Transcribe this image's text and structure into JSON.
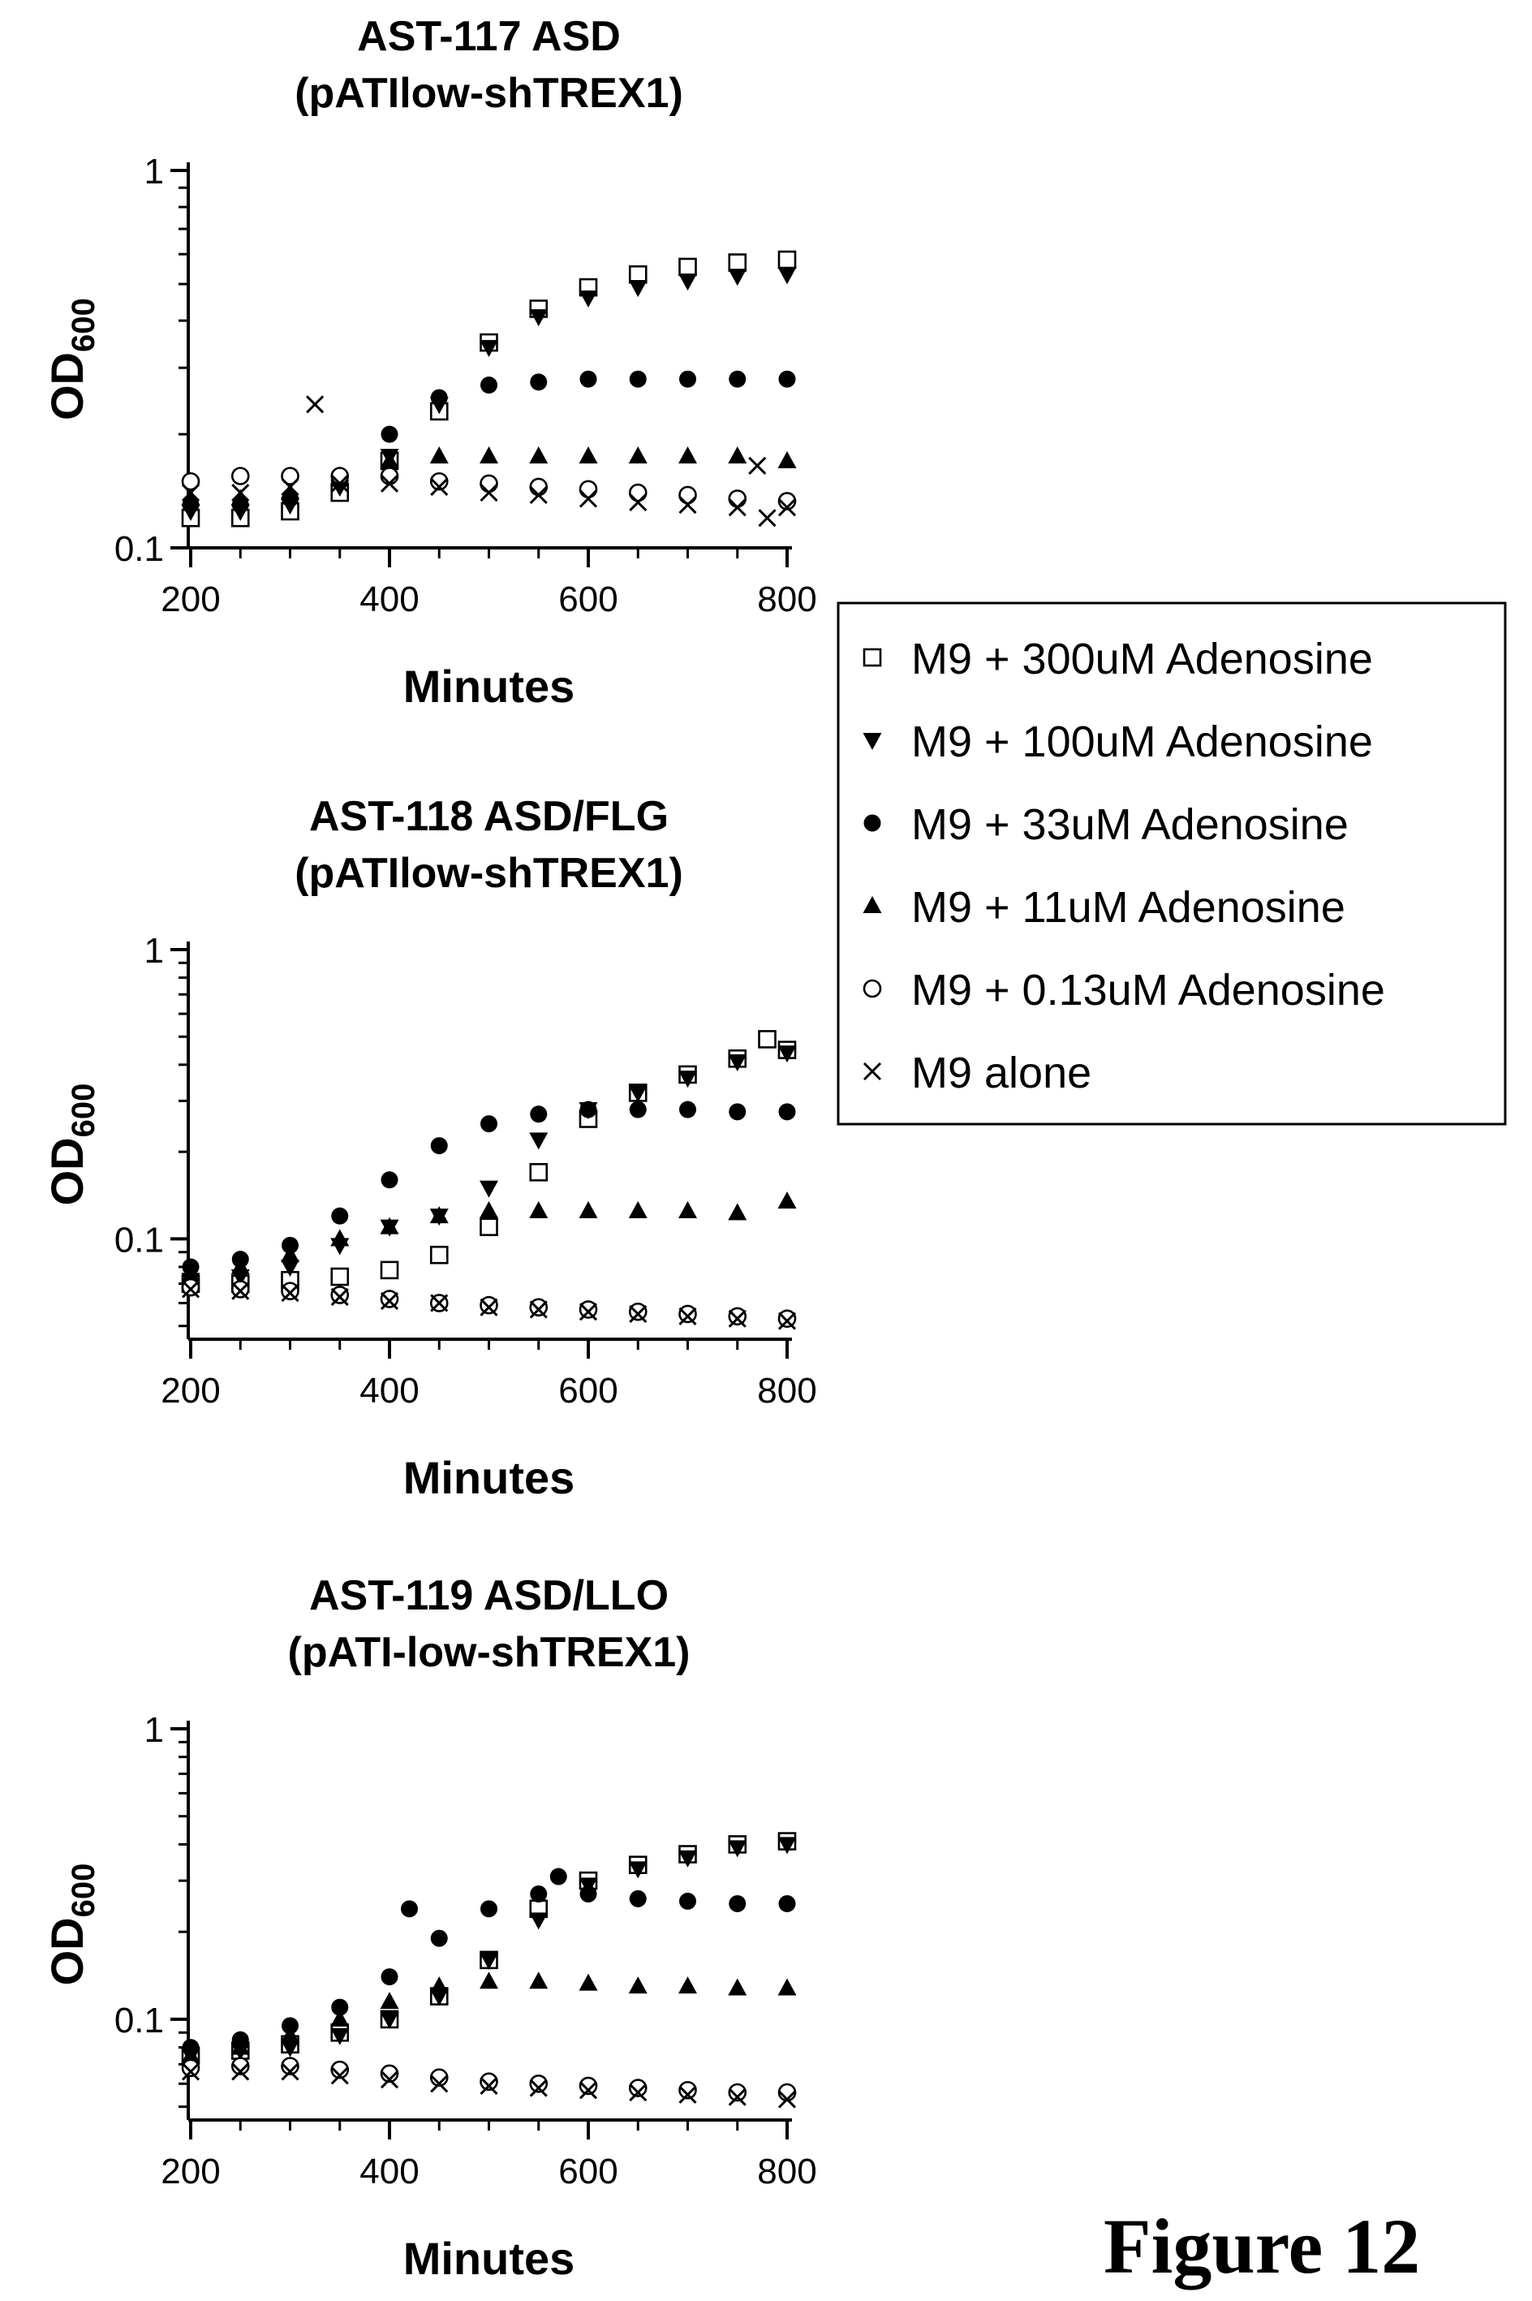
{
  "figure_label": "Figure 12",
  "legend": [
    {
      "label": "M9 + 300uM Adenosine",
      "marker": "square-open"
    },
    {
      "label": "M9 + 100uM Adenosine",
      "marker": "triangle-down-filled"
    },
    {
      "label": "M9 + 33uM Adenosine",
      "marker": "circle-filled"
    },
    {
      "label": "M9 + 11uM Adenosine",
      "marker": "triangle-up-filled"
    },
    {
      "label": "M9 + 0.13uM Adenosine",
      "marker": "circle-open"
    },
    {
      "label": "M9 alone",
      "marker": "x"
    }
  ],
  "chart_data": [
    {
      "type": "scatter",
      "title": [
        "AST-117 ASD",
        "(pATIlow-shTREX1)"
      ],
      "xlabel": "Minutes",
      "ylabel": "OD",
      "ylabel_sub": "600",
      "xlim": [
        200,
        800
      ],
      "ylim": [
        0.1,
        1
      ],
      "yscale": "log",
      "x_ticks": [
        "200",
        "400",
        "600",
        "800"
      ],
      "y_ticks": [
        "1",
        "0.1"
      ],
      "series": [
        {
          "points": [
            [
              200,
              0.12
            ],
            [
              250,
              0.12
            ],
            [
              300,
              0.125
            ],
            [
              350,
              0.14
            ],
            [
              400,
              0.17
            ],
            [
              450,
              0.23
            ],
            [
              500,
              0.35
            ],
            [
              550,
              0.43
            ],
            [
              600,
              0.49
            ],
            [
              650,
              0.53
            ],
            [
              700,
              0.555
            ],
            [
              750,
              0.57
            ],
            [
              800,
              0.58
            ]
          ]
        },
        {
          "points": [
            [
              200,
              0.125
            ],
            [
              250,
              0.125
            ],
            [
              300,
              0.13
            ],
            [
              350,
              0.145
            ],
            [
              400,
              0.175
            ],
            [
              450,
              0.24
            ],
            [
              500,
              0.34
            ],
            [
              550,
              0.41
            ],
            [
              600,
              0.46
            ],
            [
              650,
              0.49
            ],
            [
              700,
              0.51
            ],
            [
              750,
              0.525
            ],
            [
              800,
              0.53
            ]
          ]
        },
        {
          "points": [
            [
              200,
              0.13
            ],
            [
              250,
              0.13
            ],
            [
              300,
              0.135
            ],
            [
              350,
              0.15
            ],
            [
              400,
              0.2
            ],
            [
              450,
              0.25
            ],
            [
              500,
              0.27
            ],
            [
              550,
              0.275
            ],
            [
              600,
              0.28
            ],
            [
              650,
              0.28
            ],
            [
              700,
              0.28
            ],
            [
              750,
              0.28
            ],
            [
              800,
              0.28
            ]
          ]
        },
        {
          "points": [
            [
              200,
              0.135
            ],
            [
              250,
              0.135
            ],
            [
              300,
              0.14
            ],
            [
              350,
              0.155
            ],
            [
              400,
              0.17
            ],
            [
              450,
              0.175
            ],
            [
              500,
              0.175
            ],
            [
              550,
              0.175
            ],
            [
              600,
              0.175
            ],
            [
              650,
              0.175
            ],
            [
              700,
              0.175
            ],
            [
              750,
              0.175
            ],
            [
              800,
              0.17
            ]
          ]
        },
        {
          "points": [
            [
              200,
              0.15
            ],
            [
              250,
              0.155
            ],
            [
              300,
              0.155
            ],
            [
              350,
              0.155
            ],
            [
              400,
              0.155
            ],
            [
              450,
              0.15
            ],
            [
              500,
              0.148
            ],
            [
              550,
              0.145
            ],
            [
              600,
              0.143
            ],
            [
              650,
              0.14
            ],
            [
              700,
              0.138
            ],
            [
              750,
              0.135
            ],
            [
              800,
              0.133
            ]
          ]
        },
        {
          "points": [
            [
              200,
              0.14
            ],
            [
              250,
              0.14
            ],
            [
              300,
              0.145
            ],
            [
              325,
              0.24
            ],
            [
              350,
              0.148
            ],
            [
              400,
              0.148
            ],
            [
              450,
              0.145
            ],
            [
              500,
              0.14
            ],
            [
              550,
              0.138
            ],
            [
              600,
              0.135
            ],
            [
              650,
              0.132
            ],
            [
              700,
              0.13
            ],
            [
              750,
              0.128
            ],
            [
              770,
              0.165
            ],
            [
              780,
              0.12
            ],
            [
              800,
              0.128
            ]
          ]
        }
      ]
    },
    {
      "type": "scatter",
      "title": [
        "AST-118 ASD/FLG",
        "(pATIlow-shTREX1)"
      ],
      "xlabel": "Minutes",
      "ylabel": "OD",
      "ylabel_sub": "600",
      "xlim": [
        200,
        800
      ],
      "ylim": [
        0.045,
        1
      ],
      "yscale": "log",
      "x_ticks": [
        "200",
        "400",
        "600",
        "800"
      ],
      "y_ticks": [
        "1",
        "0.1"
      ],
      "series": [
        {
          "points": [
            [
              200,
              0.07
            ],
            [
              250,
              0.07
            ],
            [
              300,
              0.072
            ],
            [
              350,
              0.074
            ],
            [
              400,
              0.078
            ],
            [
              450,
              0.088
            ],
            [
              500,
              0.11
            ],
            [
              550,
              0.17
            ],
            [
              600,
              0.26
            ],
            [
              650,
              0.32
            ],
            [
              700,
              0.37
            ],
            [
              750,
              0.42
            ],
            [
              780,
              0.49
            ],
            [
              800,
              0.45
            ]
          ]
        },
        {
          "points": [
            [
              200,
              0.072
            ],
            [
              250,
              0.074
            ],
            [
              300,
              0.08
            ],
            [
              350,
              0.095
            ],
            [
              400,
              0.11
            ],
            [
              450,
              0.12
            ],
            [
              500,
              0.15
            ],
            [
              550,
              0.22
            ],
            [
              600,
              0.28
            ],
            [
              650,
              0.32
            ],
            [
              700,
              0.36
            ],
            [
              750,
              0.41
            ],
            [
              800,
              0.44
            ]
          ]
        },
        {
          "points": [
            [
              200,
              0.08
            ],
            [
              250,
              0.085
            ],
            [
              300,
              0.095
            ],
            [
              350,
              0.12
            ],
            [
              400,
              0.16
            ],
            [
              450,
              0.21
            ],
            [
              500,
              0.25
            ],
            [
              550,
              0.27
            ],
            [
              600,
              0.28
            ],
            [
              650,
              0.28
            ],
            [
              700,
              0.28
            ],
            [
              750,
              0.275
            ],
            [
              800,
              0.275
            ]
          ]
        },
        {
          "points": [
            [
              200,
              0.075
            ],
            [
              250,
              0.08
            ],
            [
              300,
              0.088
            ],
            [
              350,
              0.1
            ],
            [
              400,
              0.11
            ],
            [
              450,
              0.12
            ],
            [
              500,
              0.125
            ],
            [
              550,
              0.125
            ],
            [
              600,
              0.125
            ],
            [
              650,
              0.125
            ],
            [
              700,
              0.125
            ],
            [
              750,
              0.123
            ],
            [
              800,
              0.135
            ]
          ]
        },
        {
          "points": [
            [
              200,
              0.068
            ],
            [
              250,
              0.067
            ],
            [
              300,
              0.066
            ],
            [
              350,
              0.064
            ],
            [
              400,
              0.062
            ],
            [
              450,
              0.06
            ],
            [
              500,
              0.059
            ],
            [
              550,
              0.058
            ],
            [
              600,
              0.057
            ],
            [
              650,
              0.056
            ],
            [
              700,
              0.055
            ],
            [
              750,
              0.054
            ],
            [
              800,
              0.053
            ]
          ]
        },
        {
          "points": [
            [
              200,
              0.067
            ],
            [
              250,
              0.066
            ],
            [
              300,
              0.065
            ],
            [
              350,
              0.063
            ],
            [
              400,
              0.061
            ],
            [
              450,
              0.06
            ],
            [
              500,
              0.058
            ],
            [
              550,
              0.057
            ],
            [
              600,
              0.056
            ],
            [
              650,
              0.055
            ],
            [
              700,
              0.054
            ],
            [
              750,
              0.053
            ],
            [
              800,
              0.052
            ]
          ]
        }
      ]
    },
    {
      "type": "scatter",
      "title": [
        "AST-119 ASD/LLO",
        "(pATI-low-shTREX1)"
      ],
      "xlabel": "Minutes",
      "ylabel": "OD",
      "ylabel_sub": "600",
      "xlim": [
        200,
        800
      ],
      "ylim": [
        0.045,
        1
      ],
      "yscale": "log",
      "x_ticks": [
        "200",
        "400",
        "600",
        "800"
      ],
      "y_ticks": [
        "1",
        "0.1"
      ],
      "series": [
        {
          "points": [
            [
              200,
              0.075
            ],
            [
              250,
              0.078
            ],
            [
              300,
              0.082
            ],
            [
              350,
              0.09
            ],
            [
              400,
              0.1
            ],
            [
              450,
              0.12
            ],
            [
              500,
              0.16
            ],
            [
              550,
              0.24
            ],
            [
              600,
              0.3
            ],
            [
              650,
              0.34
            ],
            [
              700,
              0.37
            ],
            [
              750,
              0.4
            ],
            [
              800,
              0.41
            ]
          ]
        },
        {
          "points": [
            [
              200,
              0.075
            ],
            [
              250,
              0.078
            ],
            [
              300,
              0.08
            ],
            [
              350,
              0.088
            ],
            [
              400,
              0.1
            ],
            [
              450,
              0.12
            ],
            [
              500,
              0.16
            ],
            [
              550,
              0.22
            ],
            [
              600,
              0.29
            ],
            [
              650,
              0.33
            ],
            [
              700,
              0.36
            ],
            [
              750,
              0.39
            ],
            [
              800,
              0.4
            ]
          ]
        },
        {
          "points": [
            [
              200,
              0.08
            ],
            [
              250,
              0.085
            ],
            [
              300,
              0.095
            ],
            [
              350,
              0.11
            ],
            [
              400,
              0.14
            ],
            [
              420,
              0.24
            ],
            [
              450,
              0.19
            ],
            [
              500,
              0.24
            ],
            [
              550,
              0.27
            ],
            [
              570,
              0.31
            ],
            [
              600,
              0.27
            ],
            [
              650,
              0.26
            ],
            [
              700,
              0.255
            ],
            [
              750,
              0.25
            ],
            [
              800,
              0.25
            ]
          ]
        },
        {
          "points": [
            [
              200,
              0.075
            ],
            [
              250,
              0.08
            ],
            [
              300,
              0.088
            ],
            [
              350,
              0.1
            ],
            [
              400,
              0.115
            ],
            [
              450,
              0.13
            ],
            [
              500,
              0.135
            ],
            [
              550,
              0.135
            ],
            [
              600,
              0.133
            ],
            [
              650,
              0.13
            ],
            [
              700,
              0.13
            ],
            [
              750,
              0.128
            ],
            [
              800,
              0.128
            ]
          ]
        },
        {
          "points": [
            [
              200,
              0.068
            ],
            [
              250,
              0.069
            ],
            [
              300,
              0.069
            ],
            [
              350,
              0.067
            ],
            [
              400,
              0.065
            ],
            [
              450,
              0.063
            ],
            [
              500,
              0.061
            ],
            [
              550,
              0.06
            ],
            [
              600,
              0.059
            ],
            [
              650,
              0.058
            ],
            [
              700,
              0.057
            ],
            [
              750,
              0.056
            ],
            [
              800,
              0.056
            ]
          ]
        },
        {
          "points": [
            [
              200,
              0.066
            ],
            [
              250,
              0.066
            ],
            [
              300,
              0.066
            ],
            [
              350,
              0.064
            ],
            [
              400,
              0.062
            ],
            [
              450,
              0.06
            ],
            [
              500,
              0.059
            ],
            [
              550,
              0.058
            ],
            [
              600,
              0.057
            ],
            [
              650,
              0.056
            ],
            [
              700,
              0.055
            ],
            [
              750,
              0.054
            ],
            [
              800,
              0.053
            ]
          ]
        }
      ]
    }
  ]
}
